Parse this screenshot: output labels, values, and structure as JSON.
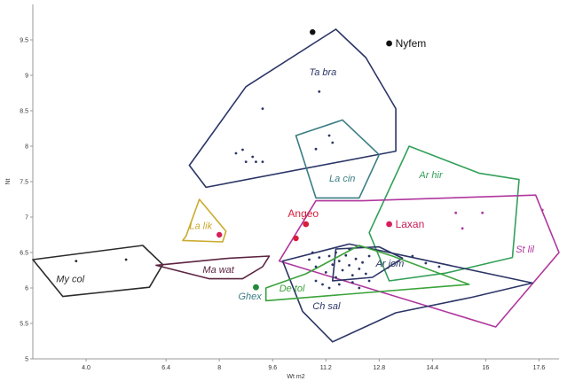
{
  "chart_data": {
    "type": "scatter",
    "xlabel": "Wt m2",
    "ylabel": "Nt",
    "xlim": [
      2.4,
      18.2
    ],
    "ylim": [
      5.0,
      10.0
    ],
    "x_ticks": [
      {
        "value": 4.0,
        "label": "4.0"
      },
      {
        "value": 6.4,
        "label": "6.4"
      },
      {
        "value": 8.0,
        "label": "8"
      },
      {
        "value": 9.6,
        "label": "9.6"
      },
      {
        "value": 11.2,
        "label": "11.2"
      },
      {
        "value": 12.8,
        "label": "12.8"
      },
      {
        "value": 14.4,
        "label": "14.4"
      },
      {
        "value": 16.0,
        "label": "16"
      },
      {
        "value": 17.6,
        "label": "17.6"
      }
    ],
    "y_ticks": [
      {
        "value": 5.0,
        "label": "5"
      },
      {
        "value": 5.5,
        "label": "5.5"
      },
      {
        "value": 6.0,
        "label": "6"
      },
      {
        "value": 6.5,
        "label": "6.5"
      },
      {
        "value": 7.0,
        "label": "7"
      },
      {
        "value": 7.5,
        "label": "7.5"
      },
      {
        "value": 8.0,
        "label": "8"
      },
      {
        "value": 8.5,
        "label": "8.5"
      },
      {
        "value": 9.0,
        "label": "9"
      },
      {
        "value": 9.5,
        "label": "9.5"
      }
    ],
    "groups": [
      {
        "name": "Ta bra",
        "color": "#2b3566",
        "label_at": [
          10.7,
          9.0
        ],
        "hull": [
          [
            7.1,
            7.73
          ],
          [
            8.8,
            8.84
          ],
          [
            11.5,
            9.65
          ],
          [
            12.4,
            9.25
          ],
          [
            13.3,
            8.53
          ],
          [
            13.3,
            7.93
          ],
          [
            7.6,
            7.42
          ]
        ],
        "points": [
          [
            8.5,
            7.9
          ],
          [
            8.7,
            7.95
          ],
          [
            9.0,
            7.85
          ],
          [
            8.8,
            7.78
          ],
          [
            9.1,
            7.78
          ],
          [
            9.3,
            7.78
          ],
          [
            9.3,
            8.53
          ],
          [
            10.9,
            7.96
          ],
          [
            11.0,
            8.77
          ],
          [
            11.3,
            8.15
          ],
          [
            11.4,
            8.05
          ]
        ]
      },
      {
        "name": "La cin",
        "color": "#3a7d84",
        "label_at": [
          11.3,
          7.5
        ],
        "hull": [
          [
            10.3,
            8.15
          ],
          [
            11.7,
            8.37
          ],
          [
            12.8,
            7.88
          ],
          [
            12.2,
            7.27
          ],
          [
            10.9,
            7.27
          ]
        ],
        "points": []
      },
      {
        "name": "Ar hir",
        "color": "#33a05a",
        "label_at": [
          14.0,
          7.55
        ],
        "hull": [
          [
            13.7,
            8.0
          ],
          [
            15.8,
            7.62
          ],
          [
            17.0,
            7.53
          ],
          [
            16.8,
            6.43
          ],
          [
            14.8,
            6.21
          ],
          [
            13.1,
            6.1
          ],
          [
            12.5,
            6.78
          ]
        ],
        "points": []
      },
      {
        "name": "St lil",
        "color": "#b0369e",
        "label_at": [
          16.9,
          6.5
        ],
        "hull": [
          [
            10.9,
            7.23
          ],
          [
            12.3,
            7.23
          ],
          [
            17.5,
            7.31
          ],
          [
            18.2,
            6.5
          ],
          [
            16.3,
            5.45
          ],
          [
            12.6,
            5.98
          ],
          [
            9.8,
            6.38
          ]
        ],
        "points": [
          [
            15.1,
            7.06
          ],
          [
            15.9,
            7.06
          ],
          [
            17.7,
            7.1
          ],
          [
            15.3,
            6.84
          ]
        ]
      },
      {
        "name": "Ch sal",
        "color": "#2b3566",
        "label_at": [
          10.8,
          5.7
        ],
        "hull": [
          [
            9.9,
            6.38
          ],
          [
            11.9,
            6.62
          ],
          [
            17.4,
            6.07
          ],
          [
            15.6,
            5.87
          ],
          [
            13.3,
            5.65
          ],
          [
            11.4,
            5.24
          ],
          [
            10.5,
            5.67
          ]
        ],
        "points": []
      },
      {
        "name": "Ar jom",
        "color": "#2b3566",
        "label_at": [
          12.7,
          6.3
        ],
        "hull": [
          [
            11.5,
            6.55
          ],
          [
            12.8,
            6.58
          ],
          [
            13.5,
            6.42
          ],
          [
            12.6,
            6.15
          ],
          [
            11.4,
            6.1
          ]
        ],
        "points": [
          [
            10.7,
            6.4
          ],
          [
            10.9,
            6.3
          ],
          [
            11.0,
            6.43
          ],
          [
            11.2,
            6.22
          ],
          [
            11.3,
            6.45
          ],
          [
            11.4,
            6.33
          ],
          [
            11.5,
            6.15
          ],
          [
            11.6,
            6.38
          ],
          [
            11.7,
            6.25
          ],
          [
            11.8,
            6.46
          ],
          [
            11.9,
            6.32
          ],
          [
            12.0,
            6.18
          ],
          [
            12.1,
            6.41
          ],
          [
            12.2,
            6.27
          ],
          [
            12.3,
            6.36
          ],
          [
            12.4,
            6.2
          ],
          [
            12.5,
            6.45
          ],
          [
            10.9,
            6.1
          ],
          [
            11.1,
            6.05
          ],
          [
            11.3,
            6.0
          ],
          [
            11.6,
            6.05
          ],
          [
            12.0,
            6.08
          ],
          [
            12.2,
            6.0
          ],
          [
            12.5,
            6.1
          ],
          [
            10.8,
            6.5
          ],
          [
            11.5,
            6.5
          ],
          [
            11.9,
            6.55
          ],
          [
            13.8,
            6.45
          ],
          [
            14.2,
            6.35
          ],
          [
            14.6,
            6.3
          ]
        ]
      },
      {
        "name": "De tol",
        "color": "#3aa33a",
        "label_at": [
          9.8,
          5.95
        ],
        "hull": [
          [
            9.4,
            6.0
          ],
          [
            10.6,
            6.2
          ],
          [
            12.2,
            6.6
          ],
          [
            13.2,
            6.45
          ],
          [
            15.5,
            6.05
          ],
          [
            9.4,
            5.82
          ]
        ],
        "points": []
      },
      {
        "name": "My col",
        "color": "#2b2b2b",
        "label_at": [
          3.1,
          6.08
        ],
        "hull": [
          [
            2.4,
            6.4
          ],
          [
            5.7,
            6.6
          ],
          [
            6.3,
            6.33
          ],
          [
            5.9,
            6.01
          ],
          [
            3.3,
            5.88
          ]
        ],
        "points": [
          [
            3.7,
            6.38
          ],
          [
            5.2,
            6.4
          ]
        ]
      },
      {
        "name": "Ma wat",
        "color": "#5b2340",
        "label_at": [
          7.5,
          6.21
        ],
        "hull": [
          [
            6.1,
            6.32
          ],
          [
            8.3,
            6.42
          ],
          [
            9.5,
            6.45
          ],
          [
            9.3,
            6.3
          ],
          [
            8.7,
            6.13
          ],
          [
            7.7,
            6.13
          ]
        ],
        "points": []
      },
      {
        "name": "La lik",
        "color": "#c9ab2e",
        "label_at": [
          7.1,
          6.83
        ],
        "hull": [
          [
            7.0,
            6.73
          ],
          [
            7.4,
            7.25
          ],
          [
            8.2,
            6.8
          ],
          [
            8.1,
            6.65
          ],
          [
            6.9,
            6.67
          ]
        ],
        "points": []
      }
    ],
    "labeled_points": [
      {
        "label": "Nyfem",
        "x": 13.1,
        "y": 9.45,
        "color": "#111111",
        "label_color": "#111111",
        "label_pos": "right"
      },
      {
        "label": "Angeo",
        "x": 10.6,
        "y": 6.9,
        "color": "#d81e3c",
        "label_color": "#d81e3c",
        "label_pos": "above"
      },
      {
        "label": "Laxan",
        "x": 13.1,
        "y": 6.9,
        "color": "#d81e5a",
        "label_color": "#c81e56",
        "label_pos": "right"
      },
      {
        "label": "Ghex",
        "x": 9.1,
        "y": 6.01,
        "color": "#1f8a3a",
        "label_color": "#3a7d84",
        "label_pos": "below"
      }
    ],
    "extra_points": [
      {
        "x": 10.8,
        "y": 9.61,
        "color": "#111111",
        "r": 3.2
      },
      {
        "x": 10.3,
        "y": 6.7,
        "color": "#d81e3c",
        "r": 3.2
      },
      {
        "x": 8.0,
        "y": 6.75,
        "color": "#d81e5a",
        "r": 3.2
      }
    ]
  }
}
